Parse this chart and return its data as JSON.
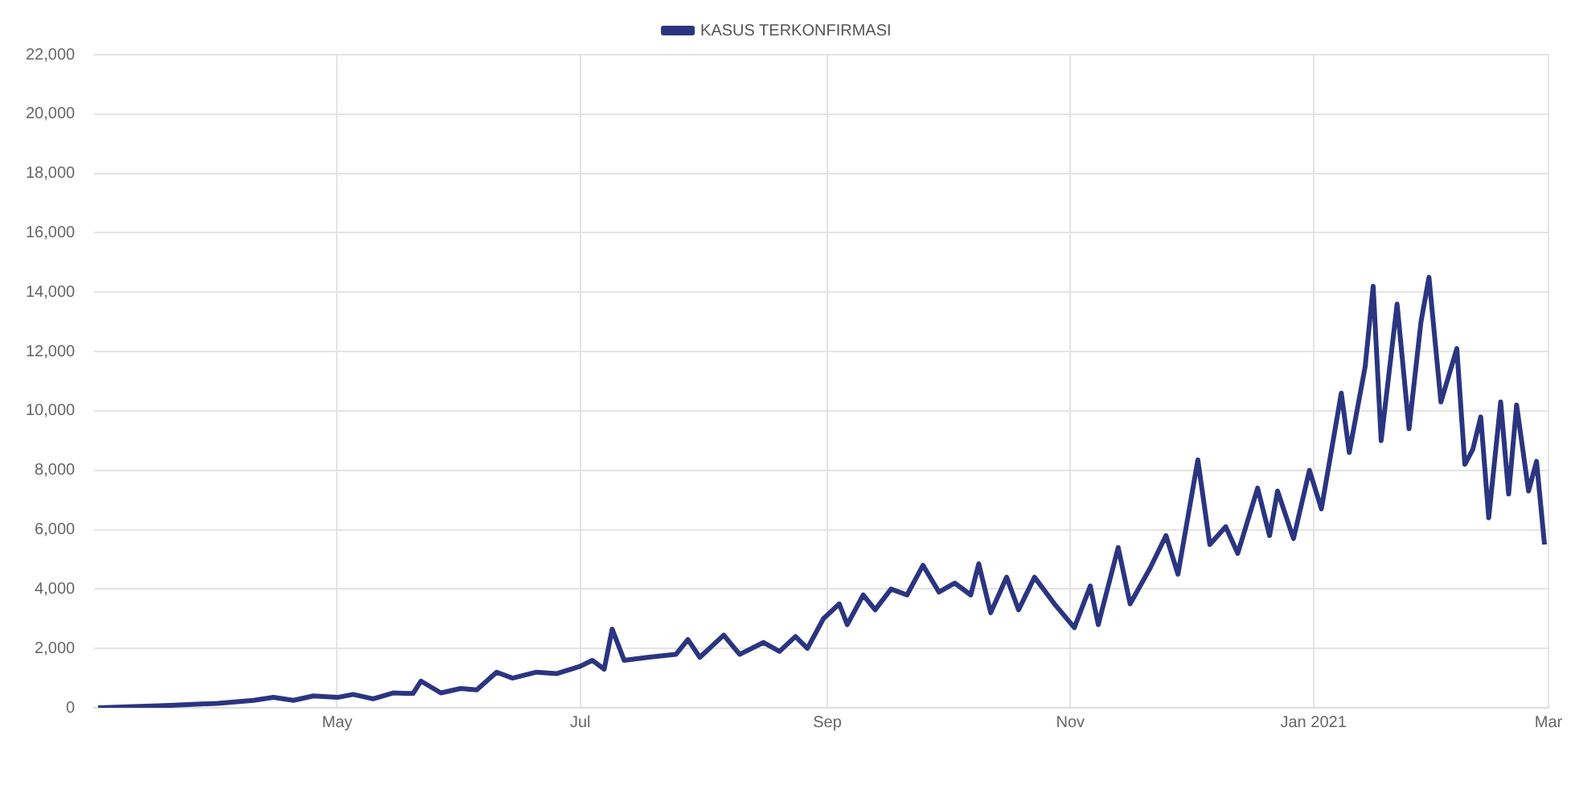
{
  "chart_data": {
    "type": "line",
    "legend": "top",
    "grid": true,
    "marker": "none",
    "line_style": "solid",
    "xlim": [
      "2020-03-01",
      "2021-03-01"
    ],
    "xticks": [
      {
        "value": "2020-05-01",
        "label": "May"
      },
      {
        "value": "2020-07-01",
        "label": "Jul"
      },
      {
        "value": "2020-09-01",
        "label": "Sep"
      },
      {
        "value": "2020-11-01",
        "label": "Nov"
      },
      {
        "value": "2021-01-01",
        "label": "Jan 2021"
      },
      {
        "value": "2021-03-01",
        "label": "Mar"
      }
    ],
    "ylim": [
      0,
      22000
    ],
    "yticks": [
      {
        "value": 0,
        "label": "0"
      },
      {
        "value": 2000,
        "label": "2,000"
      },
      {
        "value": 4000,
        "label": "4,000"
      },
      {
        "value": 6000,
        "label": "6,000"
      },
      {
        "value": 8000,
        "label": "8,000"
      },
      {
        "value": 10000,
        "label": "10,000"
      },
      {
        "value": 12000,
        "label": "12,000"
      },
      {
        "value": 14000,
        "label": "14,000"
      },
      {
        "value": 16000,
        "label": "16,000"
      },
      {
        "value": 18000,
        "label": "18,000"
      },
      {
        "value": 20000,
        "label": "20,000"
      },
      {
        "value": 22000,
        "label": "22,000"
      }
    ],
    "x": [
      "2020-03-02",
      "2020-03-20",
      "2020-04-01",
      "2020-04-10",
      "2020-04-15",
      "2020-04-20",
      "2020-04-25",
      "2020-05-01",
      "2020-05-05",
      "2020-05-10",
      "2020-05-15",
      "2020-05-20",
      "2020-05-22",
      "2020-05-27",
      "2020-06-01",
      "2020-06-05",
      "2020-06-10",
      "2020-06-14",
      "2020-06-20",
      "2020-06-25",
      "2020-07-01",
      "2020-07-04",
      "2020-07-07",
      "2020-07-09",
      "2020-07-12",
      "2020-07-18",
      "2020-07-25",
      "2020-07-28",
      "2020-07-31",
      "2020-08-06",
      "2020-08-10",
      "2020-08-16",
      "2020-08-20",
      "2020-08-24",
      "2020-08-27",
      "2020-08-31",
      "2020-09-04",
      "2020-09-06",
      "2020-09-10",
      "2020-09-13",
      "2020-09-17",
      "2020-09-21",
      "2020-09-25",
      "2020-09-29",
      "2020-10-03",
      "2020-10-07",
      "2020-10-09",
      "2020-10-12",
      "2020-10-16",
      "2020-10-19",
      "2020-10-23",
      "2020-10-28",
      "2020-11-02",
      "2020-11-06",
      "2020-11-08",
      "2020-11-13",
      "2020-11-16",
      "2020-11-21",
      "2020-11-25",
      "2020-11-28",
      "2020-12-03",
      "2020-12-06",
      "2020-12-10",
      "2020-12-13",
      "2020-12-18",
      "2020-12-21",
      "2020-12-23",
      "2020-12-27",
      "2020-12-31",
      "2021-01-03",
      "2021-01-08",
      "2021-01-10",
      "2021-01-14",
      "2021-01-16",
      "2021-01-18",
      "2021-01-22",
      "2021-01-25",
      "2021-01-28",
      "2021-01-30",
      "2021-02-02",
      "2021-02-06",
      "2021-02-08",
      "2021-02-10",
      "2021-02-12",
      "2021-02-14",
      "2021-02-17",
      "2021-02-19",
      "2021-02-21",
      "2021-02-24",
      "2021-02-26",
      "2021-02-28"
    ],
    "series": [
      {
        "name": "KASUS TERKONFIRMASI",
        "color": "#2b3580",
        "values": [
          0,
          80,
          150,
          250,
          350,
          250,
          400,
          350,
          450,
          300,
          500,
          480,
          900,
          500,
          650,
          600,
          1200,
          1000,
          1200,
          1150,
          1400,
          1600,
          1300,
          2650,
          1600,
          1700,
          1800,
          2300,
          1700,
          2450,
          1800,
          2200,
          1900,
          2400,
          2000,
          3000,
          3500,
          2800,
          3800,
          3300,
          4000,
          3800,
          4800,
          3900,
          4200,
          3800,
          4850,
          3200,
          4400,
          3300,
          4400,
          3500,
          2700,
          4100,
          2800,
          5400,
          3500,
          4700,
          5800,
          4500,
          8350,
          5500,
          6100,
          5200,
          7400,
          5800,
          7300,
          5700,
          8000,
          6700,
          10600,
          8600,
          11500,
          14200,
          9000,
          13600,
          9400,
          13000,
          14500,
          10300,
          12100,
          8200,
          8700,
          9800,
          6400,
          10300,
          7200,
          10200,
          7300,
          8300,
          5500
        ]
      }
    ]
  }
}
